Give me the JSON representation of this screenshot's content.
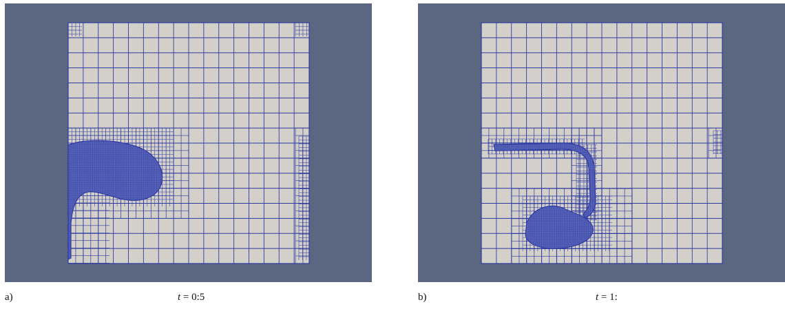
{
  "figure": {
    "background_color": "#5b6780",
    "domain_color": "#d3d0ca",
    "grid_line_color": "#2f3aa0",
    "fluid_color": "#5663b8"
  },
  "panels": [
    {
      "letter": "a)",
      "time_var": "t",
      "time_eq": " = 0:5"
    },
    {
      "letter": "b)",
      "time_var": "t",
      "time_eq": " = 1:"
    }
  ]
}
